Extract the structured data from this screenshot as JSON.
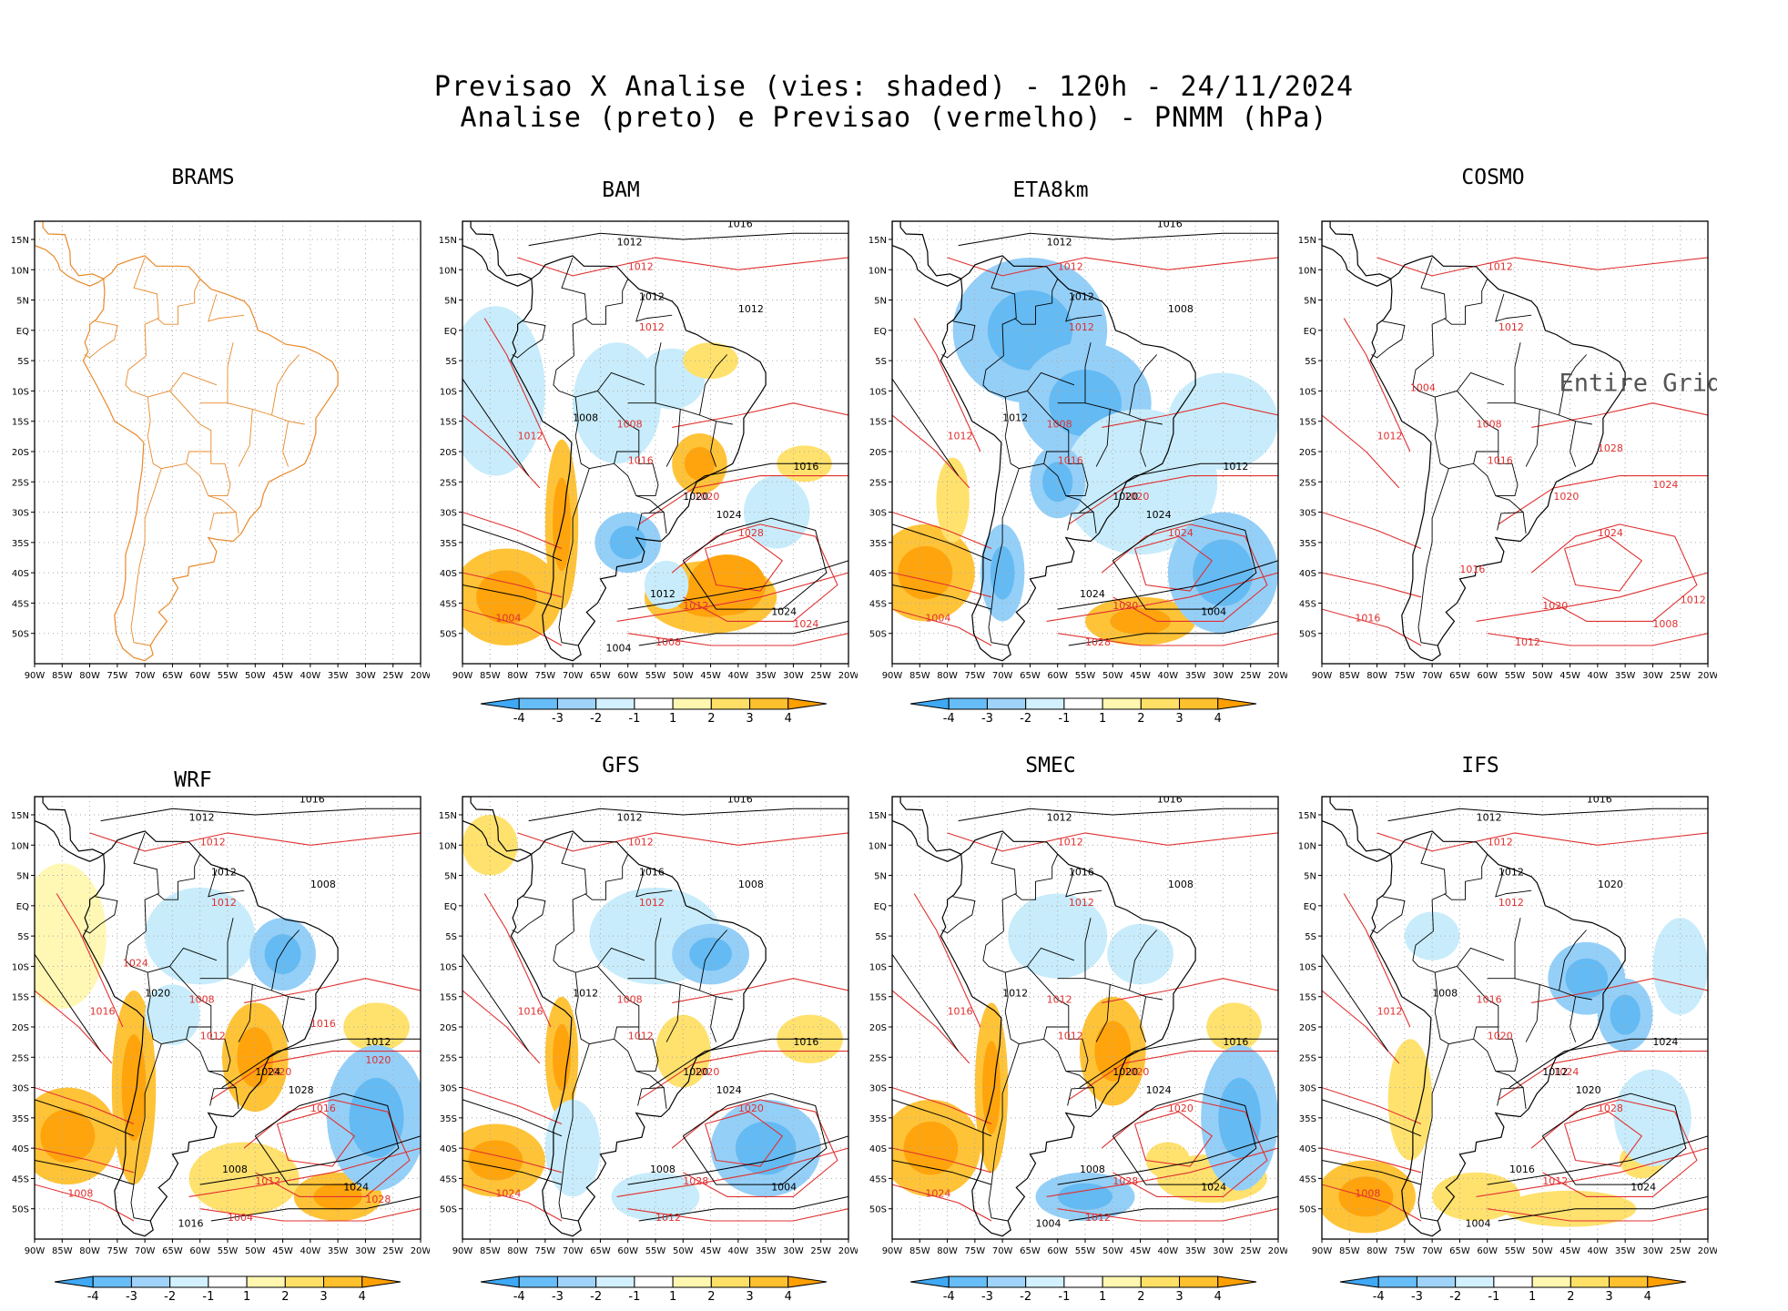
{
  "header": {
    "title_line1": "Previsao X Analise (vies: shaded) - 120h - 24/11/2024",
    "title_line2": "Analise (preto) e Previsao (vermelho) - PNMM (hPa)"
  },
  "axes": {
    "lat_labels": [
      "15N",
      "10N",
      "5N",
      "EQ",
      "5S",
      "10S",
      "15S",
      "20S",
      "25S",
      "30S",
      "35S",
      "40S",
      "45S",
      "50S"
    ],
    "lon_labels": [
      "90W",
      "85W",
      "80W",
      "75W",
      "70W",
      "65W",
      "60W",
      "55W",
      "50W",
      "45W",
      "40W",
      "35W",
      "30W",
      "25W",
      "20W"
    ]
  },
  "colorbar": {
    "labels": [
      "-4",
      "-3",
      "-2",
      "-1",
      "1",
      "2",
      "3",
      "4"
    ],
    "colors": [
      "#3fa9f5",
      "#66bdf7",
      "#9fd3fa",
      "#d2f0fd",
      "#ffffff",
      "#fff7b0",
      "#ffe066",
      "#ffc02e",
      "#ffa000"
    ]
  },
  "colors": {
    "coast": "#e8892a",
    "analysis_contour": "#000000",
    "forecast_contour": "#e03030",
    "negative_bias": "#4aa8ec",
    "positive_bias": "#ffb020"
  },
  "panels": [
    {
      "id": "brams",
      "title": "BRAMS",
      "mode": "empty",
      "labels_red": [],
      "labels_black": [],
      "note": ""
    },
    {
      "id": "bam",
      "title": "BAM",
      "mode": "bias",
      "labels_red": [
        "1012",
        "1012",
        "1008",
        "1012",
        "1016",
        "1020",
        "1028",
        "1012",
        "1004",
        "1008",
        "1024"
      ],
      "labels_black": [
        "1016",
        "1012",
        "1012",
        "1012",
        "1008",
        "1020",
        "1024",
        "1016",
        "1012",
        "1024",
        "1004"
      ],
      "note": ""
    },
    {
      "id": "eta8km",
      "title": "ETA8km",
      "mode": "bias",
      "labels_red": [
        "1012",
        "1012",
        "1008",
        "1012",
        "1016",
        "1020",
        "1024",
        "1020",
        "1004",
        "1028"
      ],
      "labels_black": [
        "1016",
        "1012",
        "1012",
        "1008",
        "1012",
        "1020",
        "1024",
        "1012",
        "1024",
        "1004"
      ],
      "note": ""
    },
    {
      "id": "cosmo",
      "title": "COSMO",
      "mode": "forecast",
      "labels_red": [
        "1012",
        "1012",
        "1008",
        "1012",
        "1016",
        "1020",
        "1024",
        "1020",
        "1016",
        "1012",
        "1008",
        "1004",
        "1028",
        "1024",
        "1016",
        "1012"
      ],
      "labels_black": [],
      "note": "Entire Grid Und"
    },
    {
      "id": "wrf",
      "title": "WRF",
      "mode": "bias",
      "labels_red": [
        "1012",
        "1012",
        "1008",
        "1016",
        "1012",
        "1020",
        "1016",
        "1012",
        "1008",
        "1004",
        "1028",
        "1024",
        "1016",
        "1020"
      ],
      "labels_black": [
        "1016",
        "1012",
        "1012",
        "1008",
        "1020",
        "1024",
        "1028",
        "1012",
        "1008",
        "1024",
        "1016"
      ],
      "note": ""
    },
    {
      "id": "gfs",
      "title": "GFS",
      "mode": "bias",
      "labels_red": [
        "1012",
        "1012",
        "1008",
        "1016",
        "1012",
        "1020",
        "1020",
        "1028",
        "1024",
        "1012"
      ],
      "labels_black": [
        "1016",
        "1012",
        "1016",
        "1008",
        "1012",
        "1020",
        "1024",
        "1016",
        "1008",
        "1004"
      ],
      "note": ""
    },
    {
      "id": "smec",
      "title": "SMEC",
      "mode": "bias",
      "labels_red": [
        "1012",
        "1012",
        "1012",
        "1016",
        "1012",
        "1020",
        "1020",
        "1028",
        "1024",
        "1012"
      ],
      "labels_black": [
        "1016",
        "1012",
        "1016",
        "1008",
        "1012",
        "1020",
        "1024",
        "1016",
        "1008",
        "1024",
        "1004"
      ],
      "note": ""
    },
    {
      "id": "ifs",
      "title": "IFS",
      "mode": "bias",
      "labels_red": [
        "1012",
        "1012",
        "1016",
        "1012",
        "1020",
        "1024",
        "1028",
        "1012",
        "1008"
      ],
      "labels_black": [
        "1016",
        "1012",
        "1012",
        "1020",
        "1008",
        "1012",
        "1020",
        "1024",
        "1016",
        "1024",
        "1004"
      ],
      "note": ""
    }
  ]
}
